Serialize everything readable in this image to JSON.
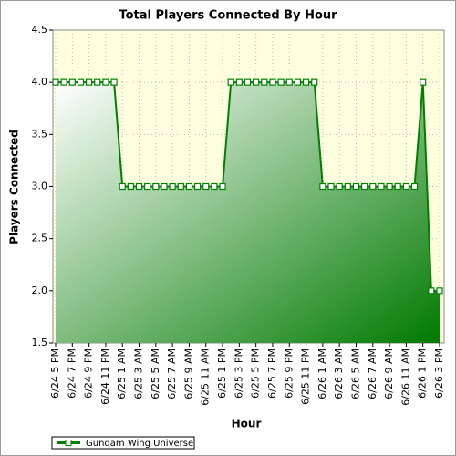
{
  "chart_data": {
    "type": "line",
    "title": "Total Players Connected By Hour",
    "x_label": "Hour",
    "y_label": "Players Connected",
    "categories": [
      "6/24 5 PM",
      null,
      "6/24 7 PM",
      null,
      "6/24 9 PM",
      null,
      "6/24 11 PM",
      null,
      "6/25 1 AM",
      null,
      "6/25 3 AM",
      null,
      "6/25 5 AM",
      null,
      "6/25 7 AM",
      null,
      "6/25 9 AM",
      null,
      "6/25 11 AM",
      null,
      "6/25 1 PM",
      null,
      "6/25 3 PM",
      null,
      "6/25 5 PM",
      null,
      "6/25 7 PM",
      null,
      "6/25 9 PM",
      null,
      "6/25 11 PM",
      null,
      "6/26 1 AM",
      null,
      "6/26 3 AM",
      null,
      "6/26 5 AM",
      null,
      "6/26 7 AM",
      null,
      "6/26 9 AM",
      null,
      "6/26 11 AM",
      null,
      "6/26 1 PM",
      null,
      "6/26 3 PM"
    ],
    "series": [
      {
        "name": "Gundam Wing Universe",
        "color": "#008000",
        "values": [
          4,
          4,
          4,
          4,
          4,
          4,
          4,
          4,
          3,
          3,
          3,
          3,
          3,
          3,
          3,
          3,
          3,
          3,
          3,
          3,
          3,
          4,
          4,
          4,
          4,
          4,
          4,
          4,
          4,
          4,
          4,
          4,
          3,
          3,
          3,
          3,
          3,
          3,
          3,
          3,
          3,
          3,
          3,
          3,
          4,
          2,
          2
        ]
      }
    ],
    "ylim": [
      1.5,
      4.5
    ],
    "yticks": [
      1.5,
      {
        "value": 2,
        "label": "2.0"
      },
      2.5,
      {
        "value": 3,
        "label": "3.0"
      },
      3.5,
      {
        "value": 4,
        "label": "4.0"
      },
      4.5
    ],
    "grid": true,
    "legend": "bottom-left"
  }
}
